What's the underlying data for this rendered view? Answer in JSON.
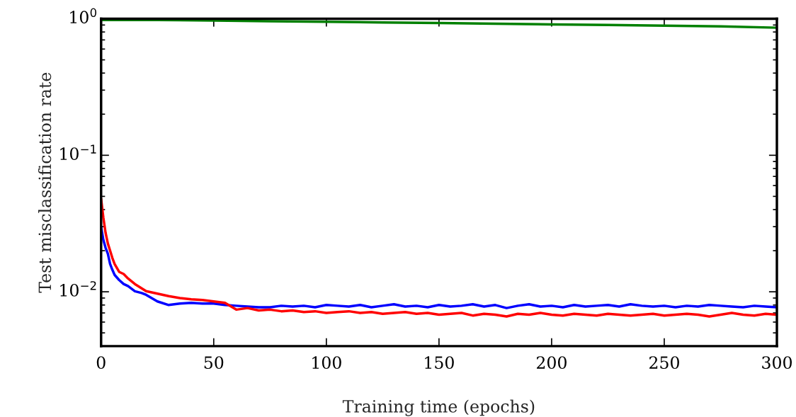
{
  "chart_data": {
    "type": "line",
    "xlabel": "Training time (epochs)",
    "ylabel": "Test misclassification rate",
    "log": "y",
    "xlim": [
      0,
      300
    ],
    "xticks": [
      0,
      50,
      100,
      150,
      200,
      250,
      300
    ],
    "ylim": [
      0.004,
      1
    ],
    "yticks": [
      {
        "value": 0.01,
        "label": "10$^{−2}$"
      },
      {
        "value": 0.1,
        "label": "10$^{−1}$"
      },
      {
        "value": 1,
        "label": "10$^{0}$"
      }
    ],
    "grid": false,
    "legend": false,
    "line_style": "solid",
    "marker": "none",
    "x": [
      0,
      1,
      2,
      3,
      4,
      5,
      6,
      8,
      10,
      12,
      15,
      18,
      20,
      25,
      30,
      35,
      40,
      45,
      50,
      55,
      60,
      65,
      70,
      75,
      80,
      85,
      90,
      95,
      100,
      105,
      110,
      115,
      120,
      125,
      130,
      135,
      140,
      145,
      150,
      155,
      160,
      165,
      170,
      175,
      180,
      185,
      190,
      195,
      200,
      205,
      210,
      215,
      220,
      225,
      230,
      235,
      240,
      245,
      250,
      255,
      260,
      265,
      270,
      275,
      280,
      285,
      290,
      295,
      300
    ],
    "series": [
      {
        "color": "#008000",
        "x": [
          0,
          25,
          50,
          75,
          100,
          125,
          150,
          175,
          200,
          225,
          250,
          275,
          300
        ],
        "values": [
          0.98,
          0.98,
          0.97,
          0.96,
          0.95,
          0.94,
          0.93,
          0.92,
          0.91,
          0.9,
          0.89,
          0.88,
          0.86
        ]
      },
      {
        "color": "#0000ff",
        "values": [
          0.03,
          0.024,
          0.021,
          0.019,
          0.016,
          0.0145,
          0.0133,
          0.0122,
          0.0114,
          0.011,
          0.0101,
          0.0098,
          0.0095,
          0.0085,
          0.008,
          0.0082,
          0.0083,
          0.0082,
          0.0082,
          0.008,
          0.0079,
          0.0078,
          0.0077,
          0.0077,
          0.0079,
          0.0078,
          0.0079,
          0.0077,
          0.008,
          0.0079,
          0.0078,
          0.008,
          0.0077,
          0.0079,
          0.0081,
          0.0078,
          0.0079,
          0.0077,
          0.008,
          0.0078,
          0.0079,
          0.0081,
          0.0078,
          0.008,
          0.0076,
          0.0079,
          0.0081,
          0.0078,
          0.0079,
          0.0077,
          0.008,
          0.0078,
          0.0079,
          0.008,
          0.0078,
          0.0081,
          0.0079,
          0.0078,
          0.0079,
          0.0077,
          0.0079,
          0.0078,
          0.008,
          0.0079,
          0.0078,
          0.0077,
          0.0079,
          0.0078,
          0.0077
        ]
      },
      {
        "color": "#ff0000",
        "values": [
          0.048,
          0.035,
          0.027,
          0.0226,
          0.02,
          0.0177,
          0.016,
          0.014,
          0.0135,
          0.0125,
          0.0114,
          0.0106,
          0.0101,
          0.0097,
          0.0093,
          0.009,
          0.0088,
          0.0087,
          0.0085,
          0.0083,
          0.0074,
          0.0076,
          0.0073,
          0.0074,
          0.0072,
          0.0073,
          0.0071,
          0.0072,
          0.007,
          0.0071,
          0.0072,
          0.007,
          0.0071,
          0.0069,
          0.007,
          0.0071,
          0.0069,
          0.007,
          0.0068,
          0.0069,
          0.007,
          0.0067,
          0.0069,
          0.0068,
          0.0066,
          0.0069,
          0.0068,
          0.007,
          0.0068,
          0.0067,
          0.0069,
          0.0068,
          0.0067,
          0.0069,
          0.0068,
          0.0067,
          0.0068,
          0.0069,
          0.0067,
          0.0068,
          0.0069,
          0.0068,
          0.0066,
          0.0068,
          0.007,
          0.0068,
          0.0067,
          0.0069,
          0.0068
        ]
      }
    ]
  }
}
